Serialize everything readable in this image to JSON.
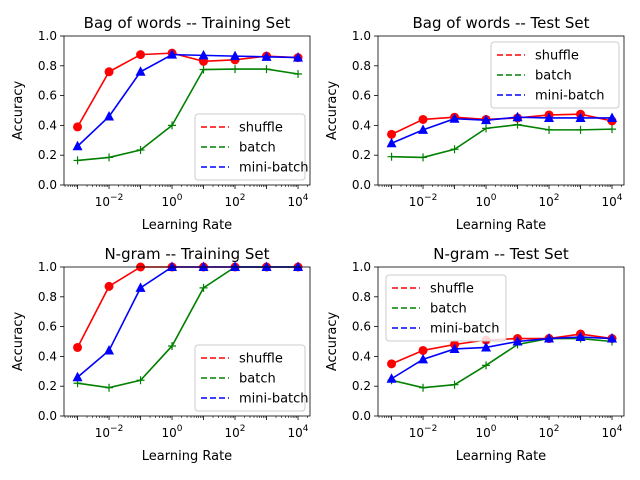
{
  "chart_data": [
    {
      "type": "line",
      "title": "Bag of words -- Training Set",
      "xlabel": "Learning Rate",
      "ylabel": "Accuracy",
      "xscale": "log",
      "x": [
        0.001,
        0.01,
        0.1,
        1,
        10,
        100,
        1000,
        10000
      ],
      "ylim": [
        0,
        1.0
      ],
      "yticks": [
        "0.0",
        "0.2",
        "0.4",
        "0.6",
        "0.8",
        "1.0"
      ],
      "xticks": [
        {
          "base": "10",
          "exp": "−2",
          "value": 0.01
        },
        {
          "base": "10",
          "exp": "0",
          "value": 1
        },
        {
          "base": "10",
          "exp": "2",
          "value": 100
        },
        {
          "base": "10",
          "exp": "4",
          "value": 10000
        }
      ],
      "legend": "lower right",
      "series": [
        {
          "name": "shuffle",
          "color": "#ff0000",
          "marker": "circle",
          "values": [
            0.39,
            0.76,
            0.875,
            0.885,
            0.83,
            0.84,
            0.865,
            0.855
          ]
        },
        {
          "name": "batch",
          "color": "#008000",
          "marker": "plus",
          "values": [
            0.165,
            0.185,
            0.235,
            0.4,
            0.775,
            0.778,
            0.778,
            0.745
          ]
        },
        {
          "name": "mini-batch",
          "color": "#0000ff",
          "marker": "triangle",
          "values": [
            0.26,
            0.46,
            0.76,
            0.875,
            0.87,
            0.865,
            0.86,
            0.855
          ]
        }
      ]
    },
    {
      "type": "line",
      "title": "Bag of words -- Test Set",
      "xlabel": "Learning Rate",
      "ylabel": "Accuracy",
      "xscale": "log",
      "x": [
        0.001,
        0.01,
        0.1,
        1,
        10,
        100,
        1000,
        10000
      ],
      "ylim": [
        0,
        1.0
      ],
      "yticks": [
        "0.0",
        "0.2",
        "0.4",
        "0.6",
        "0.8",
        "1.0"
      ],
      "xticks": [
        {
          "base": "10",
          "exp": "−2",
          "value": 0.01
        },
        {
          "base": "10",
          "exp": "0",
          "value": 1
        },
        {
          "base": "10",
          "exp": "2",
          "value": 100
        },
        {
          "base": "10",
          "exp": "4",
          "value": 10000
        }
      ],
      "legend": "upper right",
      "series": [
        {
          "name": "shuffle",
          "color": "#ff0000",
          "marker": "circle",
          "values": [
            0.34,
            0.44,
            0.455,
            0.44,
            0.45,
            0.47,
            0.475,
            0.43
          ]
        },
        {
          "name": "batch",
          "color": "#008000",
          "marker": "plus",
          "values": [
            0.19,
            0.185,
            0.24,
            0.38,
            0.405,
            0.37,
            0.37,
            0.375
          ]
        },
        {
          "name": "mini-batch",
          "color": "#0000ff",
          "marker": "triangle",
          "values": [
            0.28,
            0.37,
            0.445,
            0.435,
            0.455,
            0.45,
            0.45,
            0.45
          ]
        }
      ]
    },
    {
      "type": "line",
      "title": "N-gram -- Training Set",
      "xlabel": "Learning Rate",
      "ylabel": "Accuracy",
      "xscale": "log",
      "x": [
        0.001,
        0.01,
        0.1,
        1,
        10,
        100,
        1000,
        10000
      ],
      "ylim": [
        0,
        1.0
      ],
      "yticks": [
        "0.0",
        "0.2",
        "0.4",
        "0.6",
        "0.8",
        "1.0"
      ],
      "xticks": [
        {
          "base": "10",
          "exp": "−2",
          "value": 0.01
        },
        {
          "base": "10",
          "exp": "0",
          "value": 1
        },
        {
          "base": "10",
          "exp": "2",
          "value": 100
        },
        {
          "base": "10",
          "exp": "4",
          "value": 10000
        }
      ],
      "legend": "lower right",
      "series": [
        {
          "name": "shuffle",
          "color": "#ff0000",
          "marker": "circle",
          "values": [
            0.46,
            0.87,
            1.0,
            1.0,
            1.0,
            1.0,
            1.0,
            1.0
          ]
        },
        {
          "name": "batch",
          "color": "#008000",
          "marker": "plus",
          "values": [
            0.22,
            0.19,
            0.24,
            0.47,
            0.86,
            1.0,
            1.0,
            1.0
          ]
        },
        {
          "name": "mini-batch",
          "color": "#0000ff",
          "marker": "triangle",
          "values": [
            0.26,
            0.44,
            0.86,
            1.0,
            1.0,
            1.0,
            1.0,
            1.0
          ]
        }
      ]
    },
    {
      "type": "line",
      "title": "N-gram -- Test Set",
      "xlabel": "Learning Rate",
      "ylabel": "Accuracy",
      "xscale": "log",
      "x": [
        0.001,
        0.01,
        0.1,
        1,
        10,
        100,
        1000,
        10000
      ],
      "ylim": [
        0,
        1.0
      ],
      "yticks": [
        "0.0",
        "0.2",
        "0.4",
        "0.6",
        "0.8",
        "1.0"
      ],
      "xticks": [
        {
          "base": "10",
          "exp": "−2",
          "value": 0.01
        },
        {
          "base": "10",
          "exp": "0",
          "value": 1
        },
        {
          "base": "10",
          "exp": "2",
          "value": 100
        },
        {
          "base": "10",
          "exp": "4",
          "value": 10000
        }
      ],
      "legend": "upper left",
      "series": [
        {
          "name": "shuffle",
          "color": "#ff0000",
          "marker": "circle",
          "values": [
            0.35,
            0.44,
            0.48,
            0.51,
            0.52,
            0.52,
            0.55,
            0.52
          ]
        },
        {
          "name": "batch",
          "color": "#008000",
          "marker": "plus",
          "values": [
            0.24,
            0.19,
            0.21,
            0.34,
            0.48,
            0.52,
            0.52,
            0.5
          ]
        },
        {
          "name": "mini-batch",
          "color": "#0000ff",
          "marker": "triangle",
          "values": [
            0.25,
            0.38,
            0.45,
            0.46,
            0.5,
            0.52,
            0.53,
            0.52
          ]
        }
      ]
    }
  ]
}
